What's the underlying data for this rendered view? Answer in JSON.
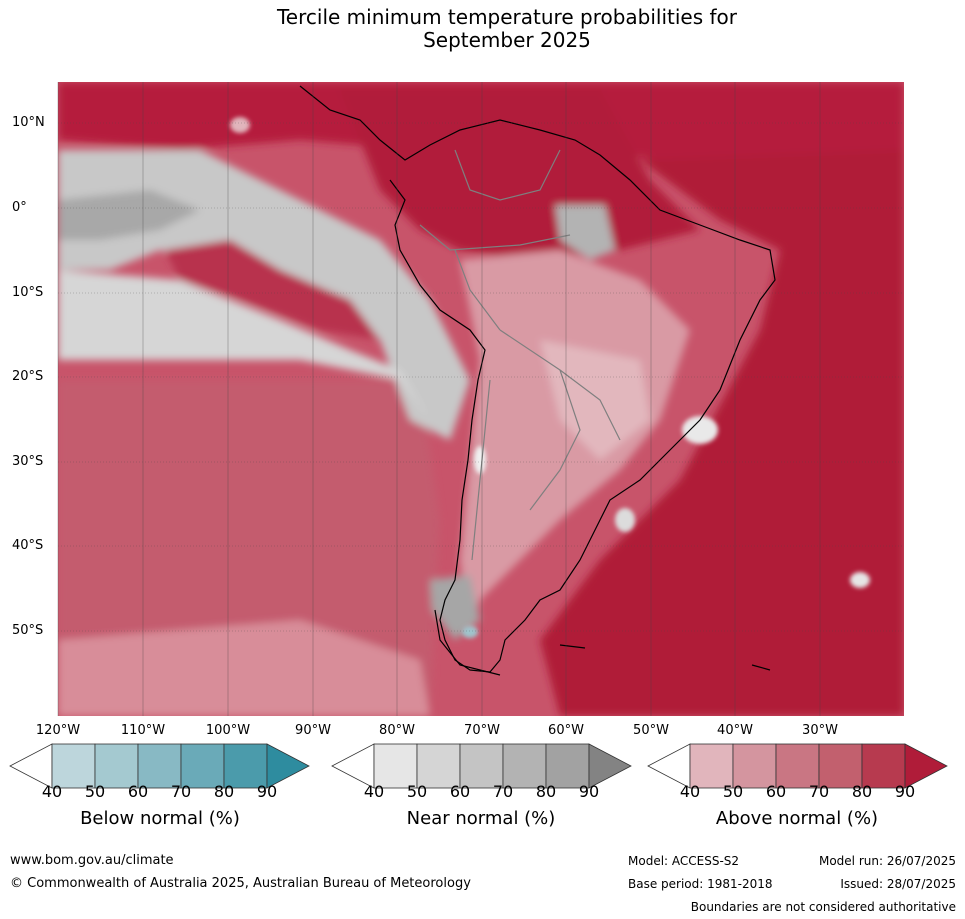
{
  "title": {
    "line1": "Tercile minimum temperature probabilities for",
    "line2": "September 2025"
  },
  "lat_labels": [
    "10°N",
    "0°",
    "10°S",
    "20°S",
    "30°S",
    "40°S",
    "50°S"
  ],
  "lon_labels": [
    "120°W",
    "110°W",
    "100°W",
    "90°W",
    "80°W",
    "70°W",
    "60°W",
    "50°W",
    "40°W",
    "30°W"
  ],
  "colorbars": [
    {
      "label": "Below normal (%)",
      "ticks": [
        "40",
        "50",
        "60",
        "70",
        "80",
        "90"
      ],
      "colors": [
        "#bdd6dc",
        "#a4c9d0",
        "#88b9c4",
        "#6aaab8",
        "#4b9bab",
        "#2e8c9f"
      ]
    },
    {
      "label": "Near normal (%)",
      "ticks": [
        "40",
        "50",
        "60",
        "70",
        "80",
        "90"
      ],
      "colors": [
        "#e6e6e6",
        "#d5d5d5",
        "#c4c4c4",
        "#b3b3b3",
        "#a2a2a2",
        "#838383"
      ]
    },
    {
      "label": "Above normal (%)",
      "ticks": [
        "40",
        "50",
        "60",
        "70",
        "80",
        "90"
      ],
      "colors": [
        "#e1b5bc",
        "#d4959f",
        "#c97683",
        "#c2606e",
        "#b73a4f",
        "#b01c39"
      ]
    }
  ],
  "footer": {
    "website": "www.bom.gov.au/climate",
    "copyright": "© Commonwealth of Australia 2025, Australian Bureau of Meteorology",
    "model": "Model: ACCESS-S2",
    "base_period": "Base period: 1981-2018",
    "model_run": "Model run: 26/07/2025",
    "issued": "Issued: 28/07/2025",
    "disclaimer": "Boundaries are not considered authoritative"
  }
}
